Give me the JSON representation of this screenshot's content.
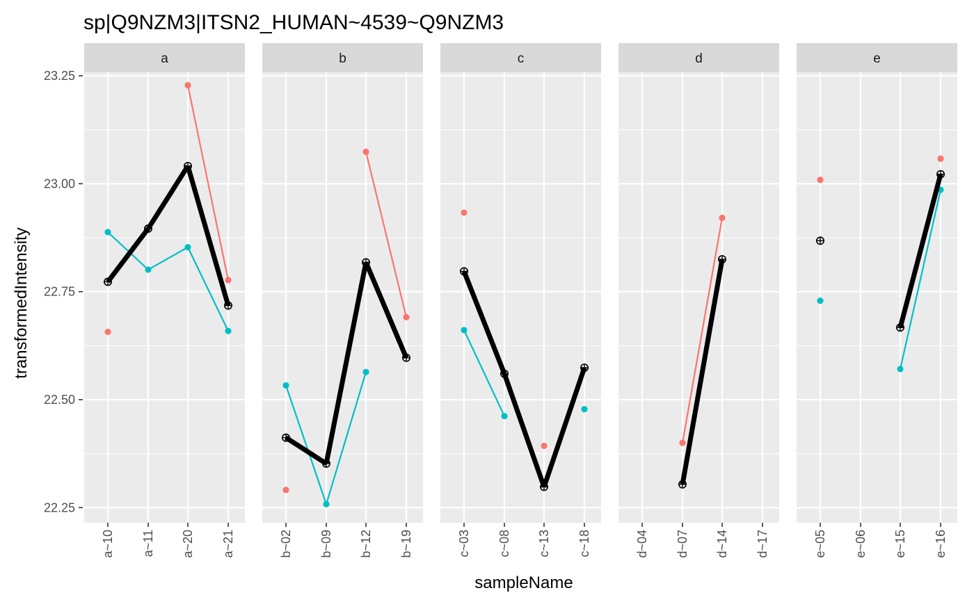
{
  "chart_data": {
    "type": "line",
    "title": "sp|Q9NZM3|ITSN2_HUMAN~4539~Q9NZM3",
    "xlabel": "sampleName",
    "ylabel": "transformedIntensity",
    "ylim": [
      22.215,
      23.258
    ],
    "yticks": [
      "22.25",
      "22.50",
      "22.75",
      "23.00",
      "23.25"
    ],
    "grid": true,
    "legend": "none",
    "colors": {
      "red": "#F8766D",
      "teal": "#00BFC4",
      "summary": "#000000",
      "panel": "#EBEBEB",
      "strip": "#D9D9D9"
    },
    "panels": [
      {
        "facet": "a",
        "categories": [
          "a~10",
          "a~11",
          "a~20",
          "a~21"
        ],
        "series": [
          {
            "color": "red",
            "values": [
              22.657,
              null,
              23.228,
              22.777
            ]
          },
          {
            "color": "teal",
            "values": [
              22.888,
              22.801,
              22.853,
              22.659
            ]
          },
          {
            "color": "summary",
            "values": [
              22.773,
              22.896,
              23.041,
              22.718
            ]
          }
        ]
      },
      {
        "facet": "b",
        "categories": [
          "b~02",
          "b~09",
          "b~12",
          "b~19"
        ],
        "series": [
          {
            "color": "red",
            "values": [
              22.291,
              null,
              23.074,
              22.691
            ]
          },
          {
            "color": "teal",
            "values": [
              22.533,
              22.258,
              22.564,
              null
            ]
          },
          {
            "color": "summary",
            "values": [
              22.412,
              22.352,
              22.818,
              22.597
            ]
          }
        ]
      },
      {
        "facet": "c",
        "categories": [
          "c~03",
          "c~08",
          "c~13",
          "c~18"
        ],
        "series": [
          {
            "color": "red",
            "values": [
              22.933,
              null,
              22.393,
              null
            ]
          },
          {
            "color": "teal",
            "values": [
              22.661,
              22.462,
              null,
              22.478
            ]
          },
          {
            "color": "summary",
            "values": [
              22.797,
              22.56,
              22.298,
              22.574
            ]
          }
        ]
      },
      {
        "facet": "d",
        "categories": [
          "d~04",
          "d~07",
          "d~14",
          "d~17"
        ],
        "series": [
          {
            "color": "red",
            "values": [
              null,
              22.4,
              22.921,
              null
            ]
          },
          {
            "color": "teal",
            "values": [
              null,
              null,
              null,
              null
            ]
          },
          {
            "color": "summary",
            "values": [
              null,
              22.304,
              22.825,
              null
            ]
          }
        ]
      },
      {
        "facet": "e",
        "categories": [
          "e~05",
          "e~06",
          "e~15",
          "e~16"
        ],
        "series": [
          {
            "color": "red",
            "values": [
              23.009,
              null,
              null,
              23.058
            ]
          },
          {
            "color": "teal",
            "values": [
              22.729,
              null,
              22.571,
              22.986
            ]
          },
          {
            "color": "summary",
            "values": [
              22.868,
              null,
              22.667,
              23.022
            ]
          }
        ]
      }
    ]
  }
}
